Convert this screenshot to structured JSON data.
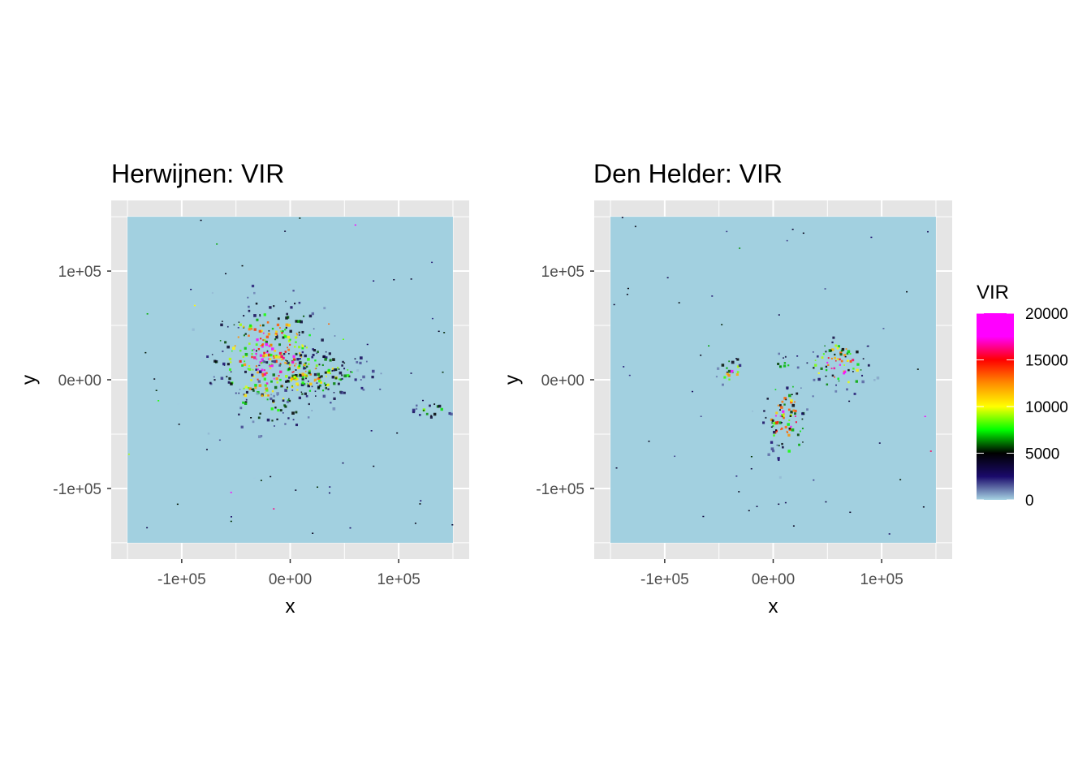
{
  "chart_data": [
    {
      "type": "heatmap",
      "title": "Herwijnen: VIR",
      "xlabel": "x",
      "ylabel": "y",
      "xlim": [
        -150000,
        150000
      ],
      "ylim": [
        -150000,
        150000
      ],
      "x_ticks": [
        -100000,
        0,
        100000
      ],
      "x_tick_labels": [
        "-1e+05",
        "0e+00",
        "1e+05"
      ],
      "y_ticks": [
        -100000,
        0,
        100000
      ],
      "y_tick_labels": [
        "-1e+05",
        "0e+00",
        "1e+05"
      ],
      "grid": true,
      "echo_regions": [
        {
          "x": -20000,
          "y": 20000,
          "rx": 55000,
          "ry": 60000,
          "peak": 20000
        },
        {
          "x": 20000,
          "y": 5000,
          "rx": 60000,
          "ry": 25000,
          "peak": 12000
        },
        {
          "x": 130000,
          "y": -28000,
          "rx": 20000,
          "ry": 8000,
          "peak": 11000
        }
      ]
    },
    {
      "type": "heatmap",
      "title": "Den Helder: VIR",
      "xlabel": "x",
      "ylabel": "y",
      "xlim": [
        -150000,
        150000
      ],
      "ylim": [
        -150000,
        150000
      ],
      "x_ticks": [
        -100000,
        0,
        100000
      ],
      "x_tick_labels": [
        "-1e+05",
        "0e+00",
        "1e+05"
      ],
      "y_ticks": [
        -100000,
        0,
        100000
      ],
      "y_tick_labels": [
        "-1e+05",
        "0e+00",
        "1e+05"
      ],
      "grid": true,
      "echo_regions": [
        {
          "x": 10000,
          "y": -35000,
          "rx": 22000,
          "ry": 38000,
          "peak": 20000
        },
        {
          "x": 60000,
          "y": 15000,
          "rx": 30000,
          "ry": 25000,
          "peak": 20000
        },
        {
          "x": 7000,
          "y": 15000,
          "rx": 10000,
          "ry": 8000,
          "peak": 15000
        },
        {
          "x": -40000,
          "y": 10000,
          "rx": 12000,
          "ry": 15000,
          "peak": 18000
        }
      ]
    }
  ],
  "legend": {
    "title": "VIR",
    "placement": "right",
    "min": 0,
    "max": 20000,
    "ticks": [
      0,
      5000,
      10000,
      15000,
      20000
    ],
    "tick_labels": [
      "0",
      "5000",
      "10000",
      "15000",
      "20000"
    ],
    "colors": [
      "#a6d3e3",
      "#1a0a6b",
      "#000000",
      "#00ff00",
      "#ffff00",
      "#ff8c00",
      "#ff0000",
      "#ff00ff",
      "#ff00ff"
    ]
  },
  "colors": {
    "panel_background": "#e5e5e5",
    "grid": "#ffffff",
    "raster_background": "#a2d0e0"
  }
}
